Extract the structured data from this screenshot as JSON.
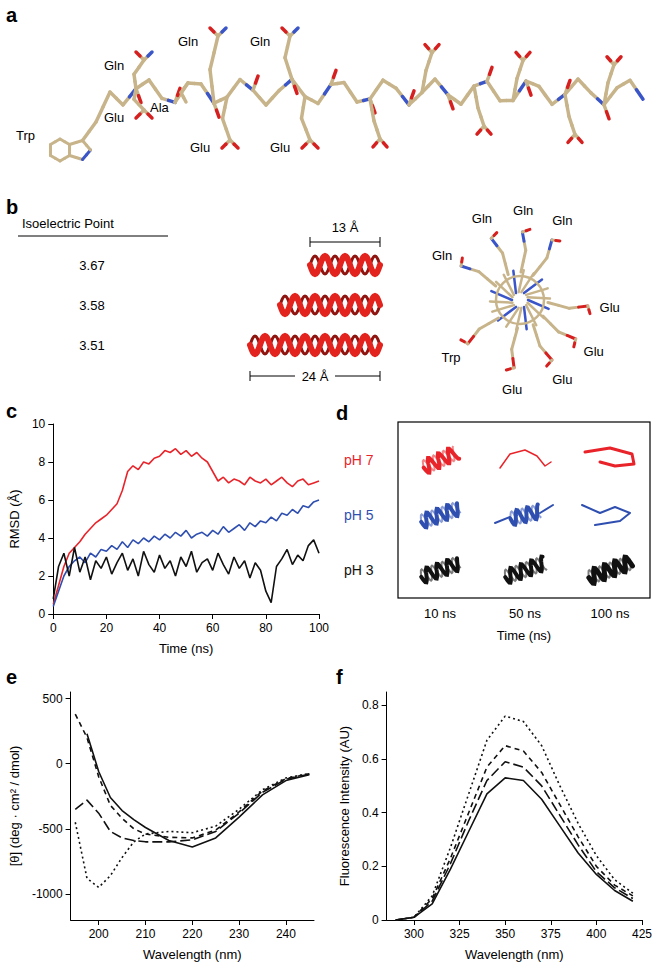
{
  "panel_a": {
    "panel": "a",
    "end_label": "Trp",
    "above": [
      "Gln",
      "Gln",
      "Gln"
    ],
    "below": [
      "Glu",
      "Ala",
      "Glu",
      "Glu"
    ]
  },
  "panel_b": {
    "panel": "b",
    "table_header": "Isoelectric Point",
    "isoelectric_points": [
      3.67,
      3.58,
      3.51
    ],
    "helix_color": "#e3241e",
    "scale_short": "13 Å",
    "scale_long": "24 Å",
    "wheel_labels": [
      "Gln",
      "Gln",
      "Gln",
      "Gln",
      "Glu",
      "Glu",
      "Glu",
      "Glu",
      "Trp"
    ]
  },
  "panel_d": {
    "panel": "d",
    "rows": [
      {
        "label": "pH 7",
        "color": "#e8242a"
      },
      {
        "label": "pH 5",
        "color": "#2f4fb0"
      },
      {
        "label": "pH 3",
        "color": "#111111"
      }
    ],
    "columns": [
      "10 ns",
      "50 ns",
      "100 ns"
    ],
    "xlabel": "Time (ns)"
  },
  "chart_data": [
    {
      "panel": "c",
      "type": "line",
      "xlabel": "Time (ns)",
      "ylabel": "RMSD (Å)",
      "x": [
        0,
        2,
        4,
        6,
        8,
        10,
        12,
        14,
        16,
        18,
        20,
        22,
        24,
        26,
        28,
        30,
        32,
        34,
        36,
        38,
        40,
        42,
        44,
        46,
        48,
        50,
        52,
        54,
        56,
        58,
        60,
        62,
        64,
        66,
        68,
        70,
        72,
        74,
        76,
        78,
        80,
        82,
        84,
        86,
        88,
        90,
        92,
        94,
        96,
        98,
        100
      ],
      "xlim": [
        0,
        100
      ],
      "xticks": [
        0,
        20,
        40,
        60,
        80,
        100
      ],
      "ylim": [
        0,
        10
      ],
      "yticks": [
        0,
        2,
        4,
        6,
        8,
        10
      ],
      "grid": false,
      "series": [
        {
          "color": "#e8242a",
          "line_style": "solid",
          "values": [
            0.5,
            1.5,
            2.5,
            3.2,
            3.5,
            3.8,
            4.2,
            4.5,
            4.8,
            5.0,
            5.2,
            5.5,
            5.8,
            6.5,
            7.5,
            7.8,
            7.6,
            8.0,
            7.9,
            8.2,
            8.3,
            8.6,
            8.5,
            8.7,
            8.4,
            8.6,
            8.3,
            8.5,
            8.2,
            8.0,
            7.5,
            7.0,
            7.2,
            6.9,
            7.1,
            7.0,
            6.8,
            7.2,
            7.0,
            6.9,
            7.1,
            6.8,
            7.0,
            7.2,
            6.9,
            6.7,
            7.0,
            7.1,
            6.8,
            6.9,
            7.0
          ]
        },
        {
          "color": "#2f4fb0",
          "line_style": "solid",
          "values": [
            0.4,
            1.2,
            2.0,
            2.5,
            2.8,
            3.0,
            2.7,
            3.2,
            3.0,
            3.4,
            3.3,
            3.6,
            3.4,
            3.8,
            3.5,
            3.9,
            3.7,
            4.0,
            3.8,
            4.1,
            3.9,
            4.2,
            4.0,
            4.3,
            4.1,
            4.4,
            4.0,
            4.2,
            4.3,
            4.1,
            4.4,
            4.2,
            4.6,
            4.3,
            4.5,
            4.7,
            4.4,
            4.8,
            4.6,
            4.9,
            4.8,
            5.1,
            4.9,
            5.3,
            5.2,
            5.5,
            5.3,
            5.7,
            5.6,
            5.9,
            6.0
          ]
        },
        {
          "color": "#111111",
          "line_style": "solid",
          "values": [
            0.8,
            2.5,
            3.2,
            2.0,
            3.5,
            2.2,
            3.0,
            1.8,
            2.8,
            2.4,
            3.0,
            2.1,
            2.7,
            3.2,
            2.3,
            2.9,
            2.0,
            3.3,
            2.6,
            2.2,
            3.1,
            2.4,
            2.8,
            2.0,
            3.0,
            2.5,
            3.3,
            2.2,
            2.7,
            2.9,
            2.3,
            3.2,
            2.6,
            2.1,
            3.0,
            2.4,
            2.8,
            1.9,
            2.7,
            2.3,
            1.2,
            0.6,
            2.5,
            2.9,
            3.4,
            2.6,
            3.1,
            2.8,
            3.6,
            3.9,
            3.2
          ]
        }
      ]
    },
    {
      "panel": "e",
      "type": "line",
      "xlabel": "Wavelength (nm)",
      "ylabel": "[θ] (deg · cm² / dmol)",
      "color": "#111111",
      "x": [
        195,
        197.5,
        200,
        202.5,
        205,
        207.5,
        210,
        215,
        220,
        225,
        230,
        235,
        240,
        245
      ],
      "xlim": [
        194,
        246
      ],
      "xticks": [
        200,
        210,
        220,
        230,
        240
      ],
      "ylim": [
        -1200,
        550
      ],
      "yticks": [
        -1000,
        -500,
        0,
        500
      ],
      "grid": false,
      "series": [
        {
          "line_style": "solid",
          "values": [
            null,
            230,
            -60,
            -260,
            -360,
            -430,
            -490,
            -590,
            -640,
            -570,
            -410,
            -240,
            -130,
            -85
          ]
        },
        {
          "line_style": "longdash",
          "values": [
            -350,
            -280,
            -380,
            -520,
            -570,
            -590,
            -600,
            -600,
            -585,
            -520,
            -380,
            -220,
            -120,
            -80
          ]
        },
        {
          "line_style": "dash",
          "values": [
            380,
            200,
            -100,
            -320,
            -420,
            -500,
            -540,
            -565,
            -570,
            -510,
            -370,
            -210,
            -115,
            -78
          ]
        },
        {
          "line_style": "dot",
          "values": [
            -450,
            -880,
            -950,
            -860,
            -720,
            -600,
            -540,
            -520,
            -530,
            -480,
            -350,
            -200,
            -110,
            -75
          ]
        }
      ]
    },
    {
      "panel": "f",
      "type": "line",
      "xlabel": "Wavelength (nm)",
      "ylabel": "Fluorescence Intensity (AU)",
      "color": "#111111",
      "x": [
        290,
        300,
        310,
        320,
        330,
        340,
        350,
        360,
        370,
        380,
        390,
        400,
        410,
        420
      ],
      "xlim": [
        285,
        425
      ],
      "xticks": [
        300,
        325,
        350,
        375,
        400,
        425
      ],
      "ylim": [
        0,
        0.85
      ],
      "yticks": [
        0,
        0.2,
        0.4,
        0.6,
        0.8
      ],
      "grid": false,
      "series": [
        {
          "line_style": "solid",
          "values": [
            0,
            0.01,
            0.06,
            0.19,
            0.33,
            0.47,
            0.53,
            0.52,
            0.45,
            0.35,
            0.25,
            0.17,
            0.11,
            0.07
          ]
        },
        {
          "line_style": "longdash",
          "values": [
            0,
            0.01,
            0.07,
            0.21,
            0.37,
            0.52,
            0.59,
            0.57,
            0.5,
            0.39,
            0.28,
            0.18,
            0.12,
            0.08
          ]
        },
        {
          "line_style": "dash",
          "values": [
            0,
            0.01,
            0.08,
            0.23,
            0.4,
            0.57,
            0.65,
            0.63,
            0.55,
            0.43,
            0.31,
            0.2,
            0.13,
            0.09
          ]
        },
        {
          "line_style": "dot",
          "values": [
            0,
            0.01,
            0.09,
            0.27,
            0.47,
            0.67,
            0.76,
            0.74,
            0.65,
            0.5,
            0.36,
            0.24,
            0.15,
            0.1
          ]
        }
      ]
    }
  ]
}
